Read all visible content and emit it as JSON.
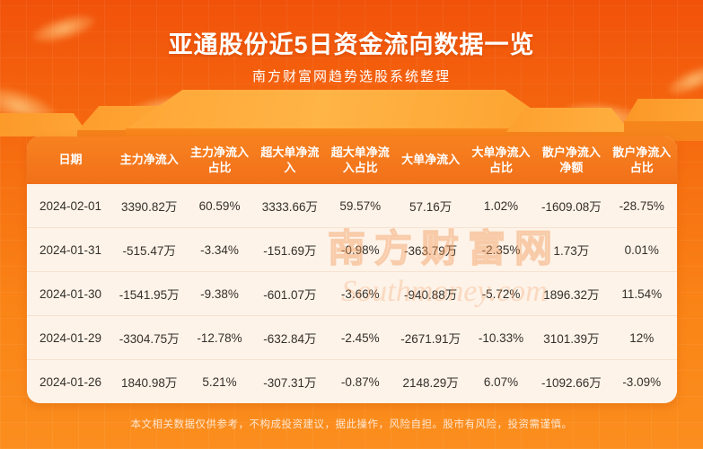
{
  "page": {
    "title": "亚通股份近5日资金流向数据一览",
    "subtitle": "南方财富网趋势选股系统整理",
    "disclaimer": "本文相关数据仅供参考，不构成投资建议，据此操作，风险自担。股市有风险，投资需谨慎。",
    "watermark_cn": "南方财富网",
    "watermark_en": "Southmoney.com"
  },
  "colors": {
    "background_top": "#f1520a",
    "background_bottom": "#fb8e1e",
    "table_header_bg": "#f4781d",
    "table_body_bg": "#fdf3e9",
    "header_text": "#ffffff",
    "body_text": "#35302a",
    "podium": "#ffb446"
  },
  "chart_data": {
    "type": "table",
    "title": "亚通股份近5日资金流向数据一览",
    "subtitle": "南方财富网趋势选股系统整理",
    "columns": [
      "日期",
      "主力净流入",
      "主力净流入占比",
      "超大单净流入",
      "超大单净流入占比",
      "大单净流入",
      "大单净流入占比",
      "散户净流入净额",
      "散户净流入占比"
    ],
    "rows": [
      [
        "2024-02-01",
        "3390.82万",
        "60.59%",
        "3333.66万",
        "59.57%",
        "57.16万",
        "1.02%",
        "-1609.08万",
        "-28.75%"
      ],
      [
        "2024-01-31",
        "-515.47万",
        "-3.34%",
        "-151.69万",
        "-0.98%",
        "-363.79万",
        "-2.35%",
        "1.73万",
        "0.01%"
      ],
      [
        "2024-01-30",
        "-1541.95万",
        "-9.38%",
        "-601.07万",
        "-3.66%",
        "-940.88万",
        "-5.72%",
        "1896.32万",
        "11.54%"
      ],
      [
        "2024-01-29",
        "-3304.75万",
        "-12.78%",
        "-632.84万",
        "-2.45%",
        "-2671.91万",
        "-10.33%",
        "3101.39万",
        "12%"
      ],
      [
        "2024-01-26",
        "1840.98万",
        "5.21%",
        "-307.31万",
        "-0.87%",
        "2148.29万",
        "6.07%",
        "-1092.66万",
        "-3.09%"
      ]
    ]
  }
}
